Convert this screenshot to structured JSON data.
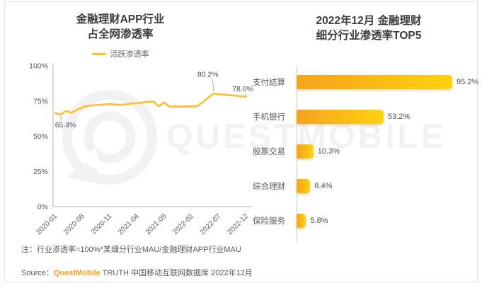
{
  "left_chart": {
    "title_lines": [
      "金融理财APP行业",
      "占全网渗透率"
    ],
    "legend_label": "活跃渗透率"
  },
  "right_chart": {
    "title_lines": [
      "2022年12月 金融理财",
      "细分行业渗透率TOP5"
    ]
  },
  "chart_data": [
    {
      "type": "line",
      "title": "金融理财APP行业占全网渗透率",
      "series": [
        {
          "name": "活跃渗透率",
          "values": [
            66.4,
            65.4,
            68.0,
            66.6,
            68.9,
            70.6,
            71.5,
            72.0,
            72.2,
            72.5,
            72.8,
            72.5,
            72.2,
            72.7,
            73.2,
            73.5,
            73.9,
            74.3,
            74.5,
            71.2,
            74.0,
            70.8,
            71.2,
            71.0,
            71.2,
            71.0,
            71.3,
            74.0,
            77.3,
            80.2,
            79.8,
            79.4,
            79.1,
            78.8,
            78.4,
            78.0
          ]
        }
      ],
      "x": [
        "2020-01",
        "2020-02",
        "2020-03",
        "2020-04",
        "2020-05",
        "2020-06",
        "2020-07",
        "2020-08",
        "2020-09",
        "2020-10",
        "2020-11",
        "2020-12",
        "2021-01",
        "2021-02",
        "2021-03",
        "2021-04",
        "2021-05",
        "2021-06",
        "2021-07",
        "2021-08",
        "2021-09",
        "2021-10",
        "2021-11",
        "2021-12",
        "2022-01",
        "2022-02",
        "2022-03",
        "2022-04",
        "2022-05",
        "2022-06",
        "2022-07",
        "2022-08",
        "2022-09",
        "2022-10",
        "2022-11",
        "2022-12"
      ],
      "ylim": [
        0,
        100
      ],
      "grid": false,
      "legend_position": "top",
      "y_ticks": [
        {
          "value": 100,
          "label": "100%"
        },
        {
          "value": 75,
          "label": "75%"
        },
        {
          "value": 50,
          "label": "50%"
        },
        {
          "value": 25,
          "label": "25%"
        },
        {
          "value": 0,
          "label": "0%"
        }
      ],
      "x_ticks": [
        {
          "index": 0,
          "label": "2020-01"
        },
        {
          "index": 5,
          "label": "2020-06"
        },
        {
          "index": 10,
          "label": "2020-11"
        },
        {
          "index": 15,
          "label": "2021-04"
        },
        {
          "index": 20,
          "label": "2021-09"
        },
        {
          "index": 25,
          "label": "2022-02"
        },
        {
          "index": 30,
          "label": "2022-07"
        },
        {
          "index": 35,
          "label": "2022-12"
        }
      ],
      "labeled_points": [
        {
          "role": "start",
          "month": "2020-02",
          "label": "65.4%"
        },
        {
          "role": "peak",
          "month": "2022-06",
          "label": "80.2%"
        },
        {
          "role": "end",
          "month": "2022-12",
          "label": "78.0%"
        }
      ]
    },
    {
      "type": "bar",
      "orientation": "horizontal",
      "title": "2022年12月 金融理财细分行业渗透率TOP5",
      "categories": [
        "支付结算",
        "手机银行",
        "股票交易",
        "综合理财",
        "保险服务"
      ],
      "values": [
        95.2,
        53.2,
        10.3,
        8.4,
        5.8
      ],
      "value_labels": [
        "95.2%",
        "53.2%",
        "10.3%",
        "8.4%",
        "5.8%"
      ],
      "xlim": [
        0,
        100
      ]
    }
  ],
  "note": "注：行业渗透率=100%*某细分行业MAU/金融理财APP行业MAU",
  "source": {
    "prefix": "Source：",
    "brand": "QuestMobile",
    "suffix": " TRUTH 中国移动互联网数据库 2022年12月"
  },
  "watermark": {
    "text": "QUESTMOBILE"
  },
  "colors": {
    "accent": "#FFBE2E",
    "bar_gradient_start": "#F5A31C",
    "bar_gradient_end": "#FFD10F",
    "brand_orange": "#F7A11A",
    "axis_gray": "#b3b3b3",
    "text_gray": "#595959"
  }
}
